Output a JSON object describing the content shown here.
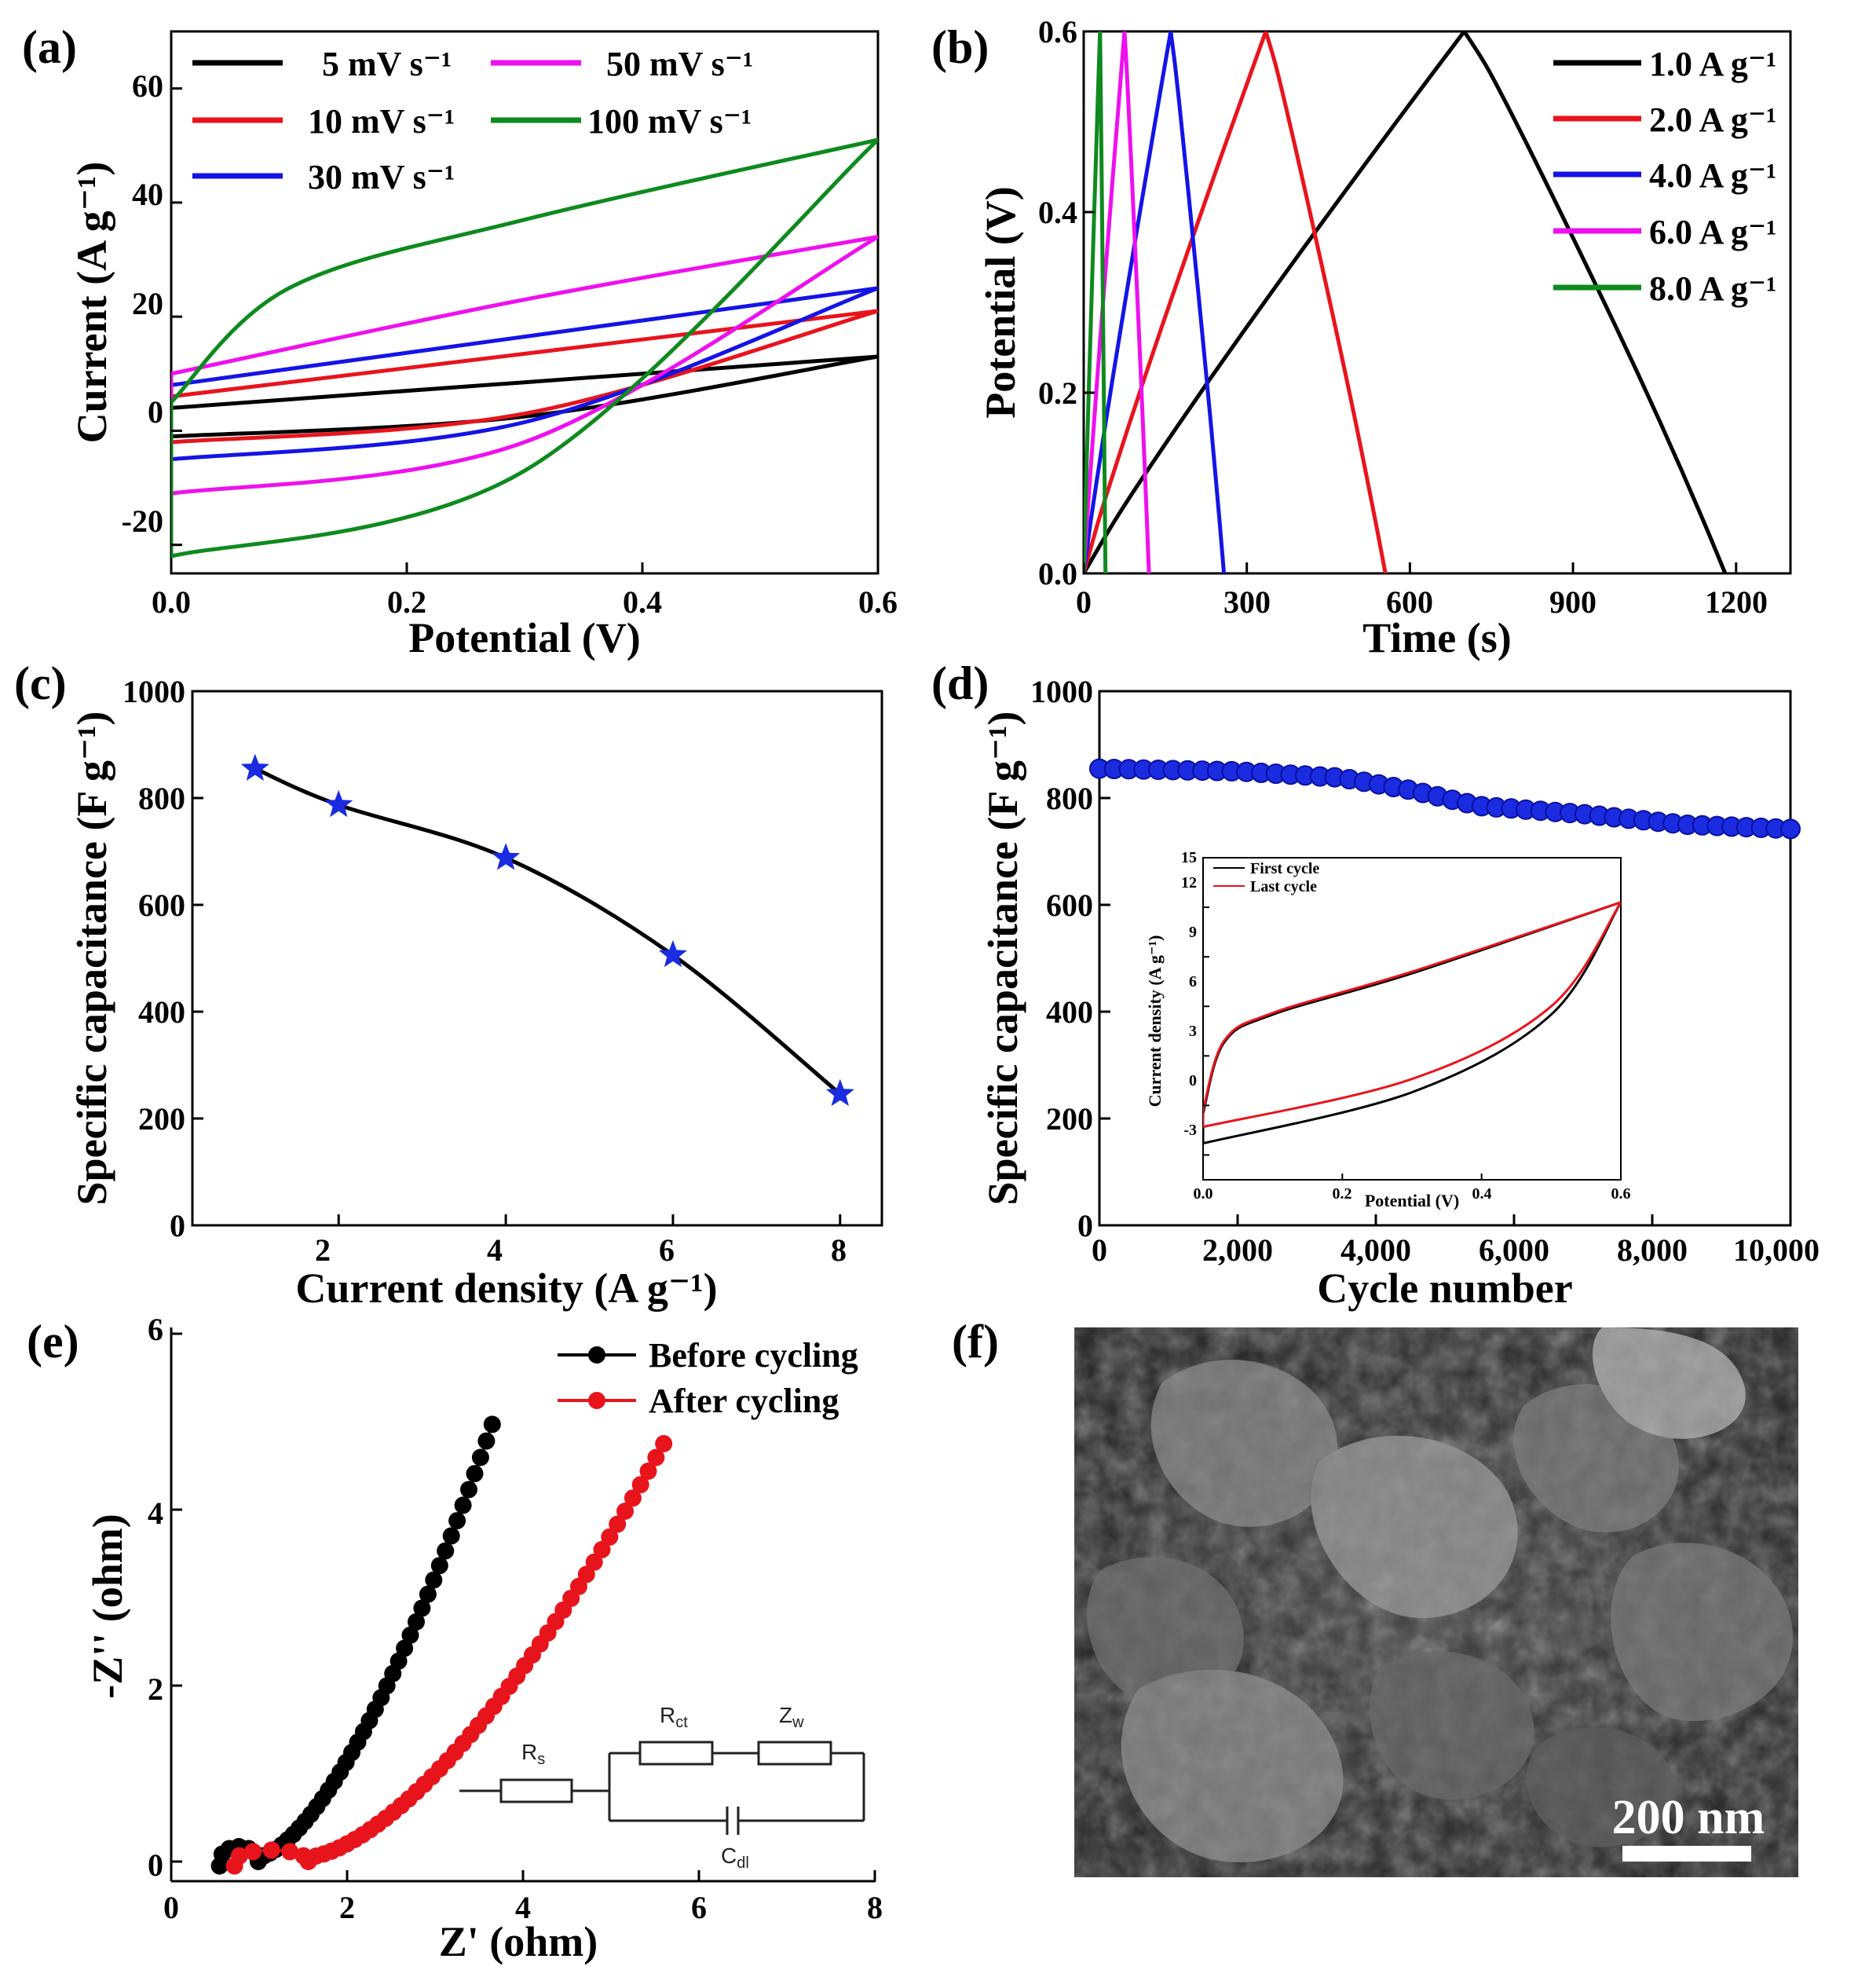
{
  "colors": {
    "black": "#000000",
    "red": "#e8141c",
    "blue": "#1414e6",
    "magenta": "#ee10ee",
    "green": "#0e8a1e",
    "marker_blue": "#1a2be0"
  },
  "chart_data": [
    {
      "panel": "(a)",
      "type": "line",
      "title": "",
      "xlabel": "Potential (V)",
      "ylabel": "Current (A g⁻¹)",
      "xlim": [
        0,
        0.6
      ],
      "ylim": [
        -25,
        70
      ],
      "xticks": [
        "0.0",
        "0.2",
        "0.4",
        "0.6"
      ],
      "yticks": [
        "-20",
        "0",
        "20",
        "40",
        "60"
      ],
      "legend": "top-left, two columns",
      "series": [
        {
          "name": "5 mV s⁻¹",
          "upper": [
            [
              0,
              4
            ],
            [
              0.3,
              8.5
            ],
            [
              0.6,
              13
            ]
          ],
          "lower": [
            [
              0,
              -1
            ],
            [
              0.3,
              2.5
            ],
            [
              0.6,
              13
            ]
          ]
        },
        {
          "name": "10 mV s⁻¹",
          "upper": [
            [
              0,
              6
            ],
            [
              0.3,
              13.5
            ],
            [
              0.6,
              21
            ]
          ],
          "lower": [
            [
              0,
              -2
            ],
            [
              0.3,
              3
            ],
            [
              0.6,
              21
            ]
          ]
        },
        {
          "name": "30 mV s⁻¹",
          "upper": [
            [
              0,
              8
            ],
            [
              0.3,
              16.5
            ],
            [
              0.6,
              25
            ]
          ],
          "lower": [
            [
              0,
              -5
            ],
            [
              0.3,
              1.5
            ],
            [
              0.6,
              25
            ]
          ]
        },
        {
          "name": "50 mV s⁻¹",
          "upper": [
            [
              0,
              10
            ],
            [
              0.3,
              23
            ],
            [
              0.6,
              34
            ]
          ],
          "lower": [
            [
              0,
              -11
            ],
            [
              0.3,
              -2
            ],
            [
              0.6,
              34
            ]
          ]
        },
        {
          "name": "100 mV s⁻¹",
          "upper": [
            [
              0,
              5
            ],
            [
              0.1,
              25
            ],
            [
              0.3,
              37
            ],
            [
              0.6,
              51
            ]
          ],
          "lower": [
            [
              0,
              -22
            ],
            [
              0.3,
              -7
            ],
            [
              0.6,
              51
            ]
          ]
        }
      ]
    },
    {
      "panel": "(b)",
      "type": "line",
      "xlabel": "Time (s)",
      "ylabel": "Potential (V)",
      "xlim": [
        0,
        1300
      ],
      "ylim": [
        0,
        0.6
      ],
      "xticks": [
        "0",
        "300",
        "600",
        "900",
        "1200"
      ],
      "yticks": [
        "0.0",
        "0.2",
        "0.4",
        "0.6"
      ],
      "legend": "top-right",
      "series": [
        {
          "name": "1.0 A g⁻¹",
          "charge_end_s": 700,
          "discharge_end_s": 1180
        },
        {
          "name": "2.0 A g⁻¹",
          "charge_end_s": 335,
          "discharge_end_s": 555
        },
        {
          "name": "4.0 A g⁻¹",
          "charge_end_s": 160,
          "discharge_end_s": 258
        },
        {
          "name": "6.0 A g⁻¹",
          "charge_end_s": 75,
          "discharge_end_s": 120
        },
        {
          "name": "8.0 A g⁻¹",
          "charge_end_s": 30,
          "discharge_end_s": 40
        }
      ]
    },
    {
      "panel": "(c)",
      "type": "line",
      "xlabel": "Current density (A g⁻¹)",
      "ylabel": "Specific capacitance (F g⁻¹)",
      "xlim": [
        0.25,
        8.5
      ],
      "ylim": [
        0,
        1000
      ],
      "xticks": [
        "2",
        "4",
        "6",
        "8"
      ],
      "yticks": [
        "0",
        "200",
        "400",
        "600",
        "800",
        "1000"
      ],
      "x": [
        1,
        2,
        4,
        6,
        8
      ],
      "values": [
        855,
        787,
        688,
        506,
        246
      ]
    },
    {
      "panel": "(d)",
      "type": "scatter",
      "xlabel": "Cycle number",
      "ylabel": "Specific capacitance (F g⁻¹)",
      "xlim": [
        0,
        10000
      ],
      "ylim": [
        0,
        1000
      ],
      "xticks": [
        "0",
        "2,000",
        "4,000",
        "6,000",
        "8,000",
        "10,000"
      ],
      "yticks": [
        "0",
        "200",
        "400",
        "600",
        "800",
        "1000"
      ],
      "trend": [
        [
          0,
          855
        ],
        [
          2000,
          850
        ],
        [
          3500,
          838
        ],
        [
          4500,
          815
        ],
        [
          5500,
          785
        ],
        [
          7000,
          770
        ],
        [
          8500,
          750
        ],
        [
          10000,
          742
        ]
      ],
      "inset": {
        "xlabel": "Potential (V)",
        "ylabel": "Current density (A g⁻¹)",
        "xlim": [
          0,
          0.6
        ],
        "ylim": [
          -4.5,
          15
        ],
        "xticks": [
          "0.0",
          "0.2",
          "0.4",
          "0.6"
        ],
        "yticks": [
          "-3",
          "0",
          "3",
          "6",
          "9",
          "12",
          "15"
        ],
        "series": [
          {
            "name": "First cycle",
            "upper": [
              [
                0,
                -0.5
              ],
              [
                0.03,
                3.8
              ],
              [
                0.1,
                5.5
              ],
              [
                0.3,
                8
              ],
              [
                0.6,
                12.3
              ]
            ],
            "lower": [
              [
                0,
                -2.3
              ],
              [
                0.3,
                0.8
              ],
              [
                0.5,
                5.5
              ],
              [
                0.6,
                12.3
              ]
            ]
          },
          {
            "name": "Last cycle",
            "upper": [
              [
                0,
                -0.3
              ],
              [
                0.03,
                3.9
              ],
              [
                0.1,
                5.6
              ],
              [
                0.3,
                8.1
              ],
              [
                0.6,
                12.3
              ]
            ],
            "lower": [
              [
                0,
                -1.3
              ],
              [
                0.3,
                1.6
              ],
              [
                0.5,
                6
              ],
              [
                0.6,
                12.3
              ]
            ]
          }
        ]
      }
    },
    {
      "panel": "(e)",
      "type": "scatter",
      "xlabel": "Z' (ohm)",
      "ylabel": "-Z'' (ohm)",
      "xlim": [
        0,
        8
      ],
      "ylim": [
        -0.2,
        6
      ],
      "xticks": [
        "0",
        "2",
        "4",
        "6",
        "8"
      ],
      "yticks": [
        "0",
        "2",
        "4",
        "6"
      ],
      "legend": "top-right",
      "series": [
        {
          "name": "Before cycling",
          "start": [
            0.55,
            -0.05
          ],
          "end": [
            3.65,
            4.92
          ]
        },
        {
          "name": "After cycling",
          "start": [
            0.72,
            -0.05
          ],
          "end": [
            5.6,
            4.7
          ]
        }
      ],
      "circuit": {
        "resistor_1": "R",
        "resistor_1_sub": "s",
        "resistor_2": "R",
        "resistor_2_sub": "ct",
        "warburg": "Z",
        "warburg_sub": "w",
        "capacitor": "C",
        "capacitor_sub": "dl"
      }
    },
    {
      "panel": "(f)",
      "type": "image",
      "scale_bar": "200 nm"
    }
  ]
}
